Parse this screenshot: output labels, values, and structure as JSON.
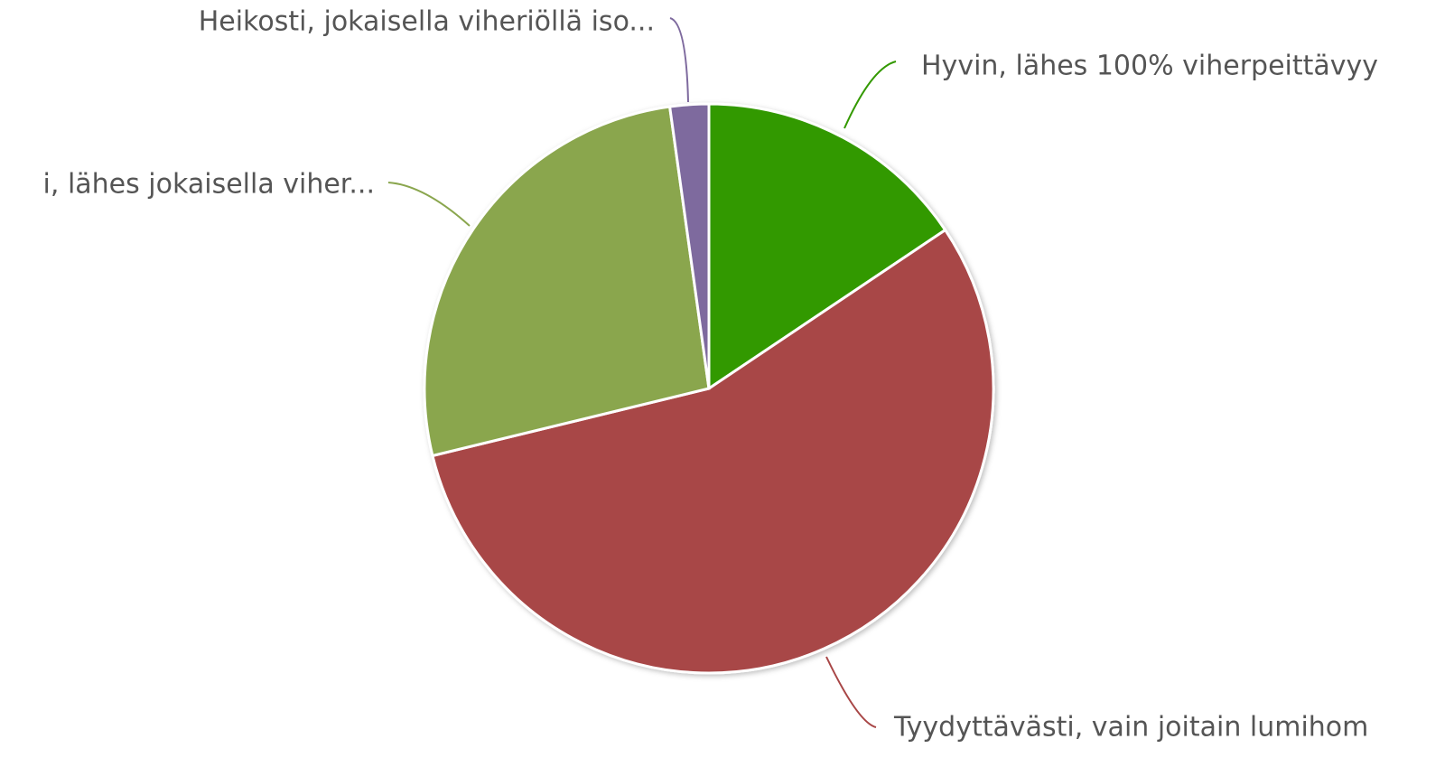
{
  "chart_data": {
    "type": "pie",
    "categories": [
      "Hyvin, lähes 100% viherpeittävyy",
      "Tyydyttävästi, vain joitain lumihom",
      "i, lähes jokaisella viher...",
      "Heikosti, jokaisella viheriöllä iso..."
    ],
    "values": [
      15.6,
      55.6,
      26.6,
      2.2
    ],
    "colors": [
      "#339900",
      "#a84646",
      "#8aa64e",
      "#7e6a9e"
    ]
  }
}
